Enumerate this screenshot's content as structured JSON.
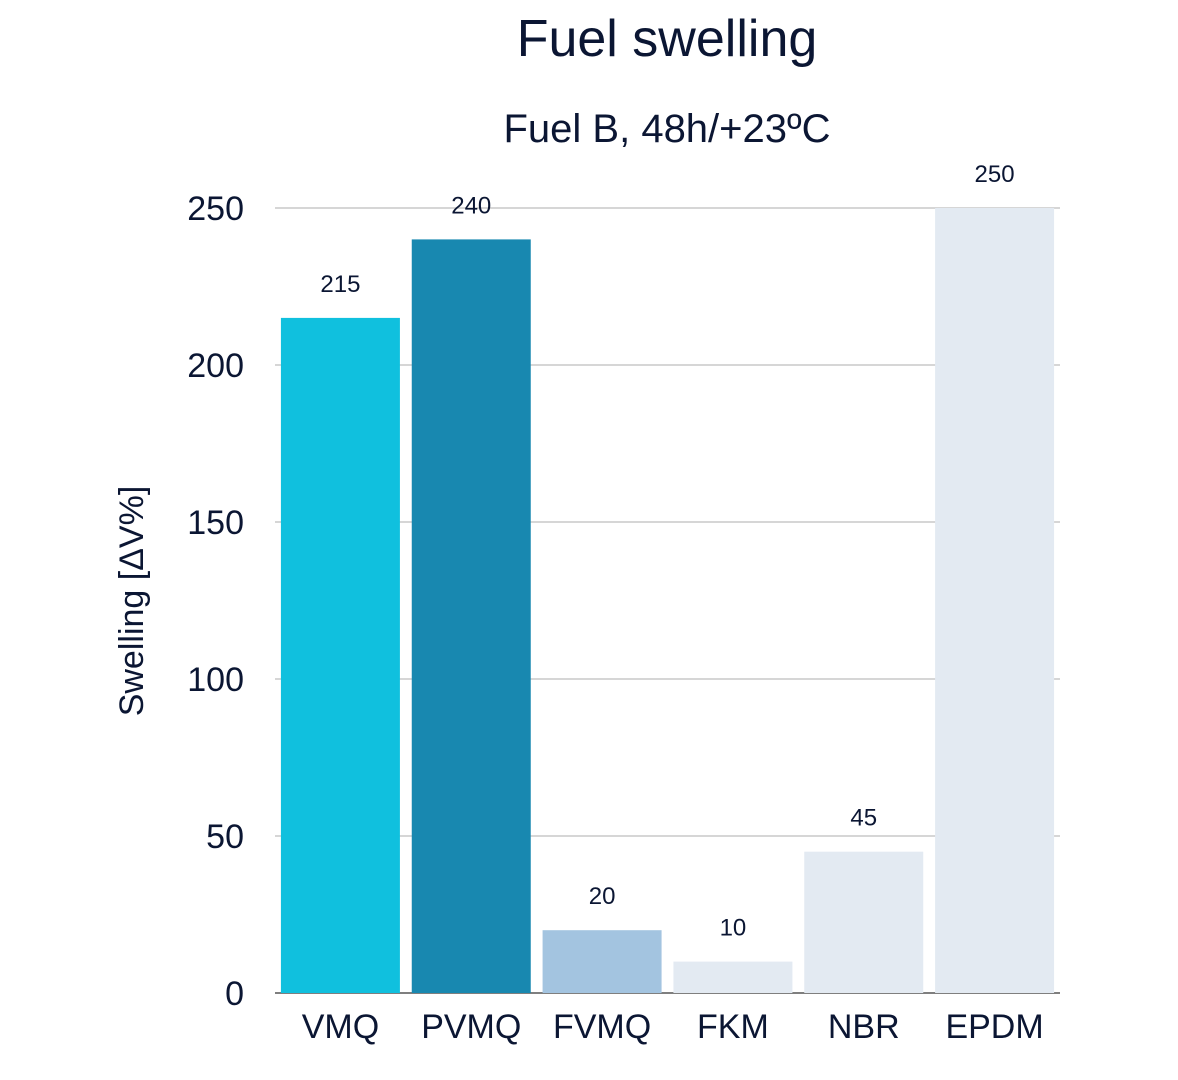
{
  "chart_data": {
    "type": "bar",
    "title": "Fuel swelling",
    "subtitle": "Fuel B, 48h/+23ºC",
    "xlabel": "",
    "ylabel": "Swelling [ΔV%]",
    "ylim": [
      0,
      250
    ],
    "yticks": [
      0,
      50,
      100,
      150,
      200,
      250
    ],
    "grid": true,
    "categories": [
      "VMQ",
      "PVMQ",
      "FVMQ",
      "FKM",
      "NBR",
      "EPDM"
    ],
    "values": [
      215,
      240,
      20,
      10,
      45,
      250
    ],
    "colors": [
      "#10c0de",
      "#1888b0",
      "#a3c4e0",
      "#e3eaf2",
      "#e3eaf2",
      "#e3eaf2"
    ]
  }
}
